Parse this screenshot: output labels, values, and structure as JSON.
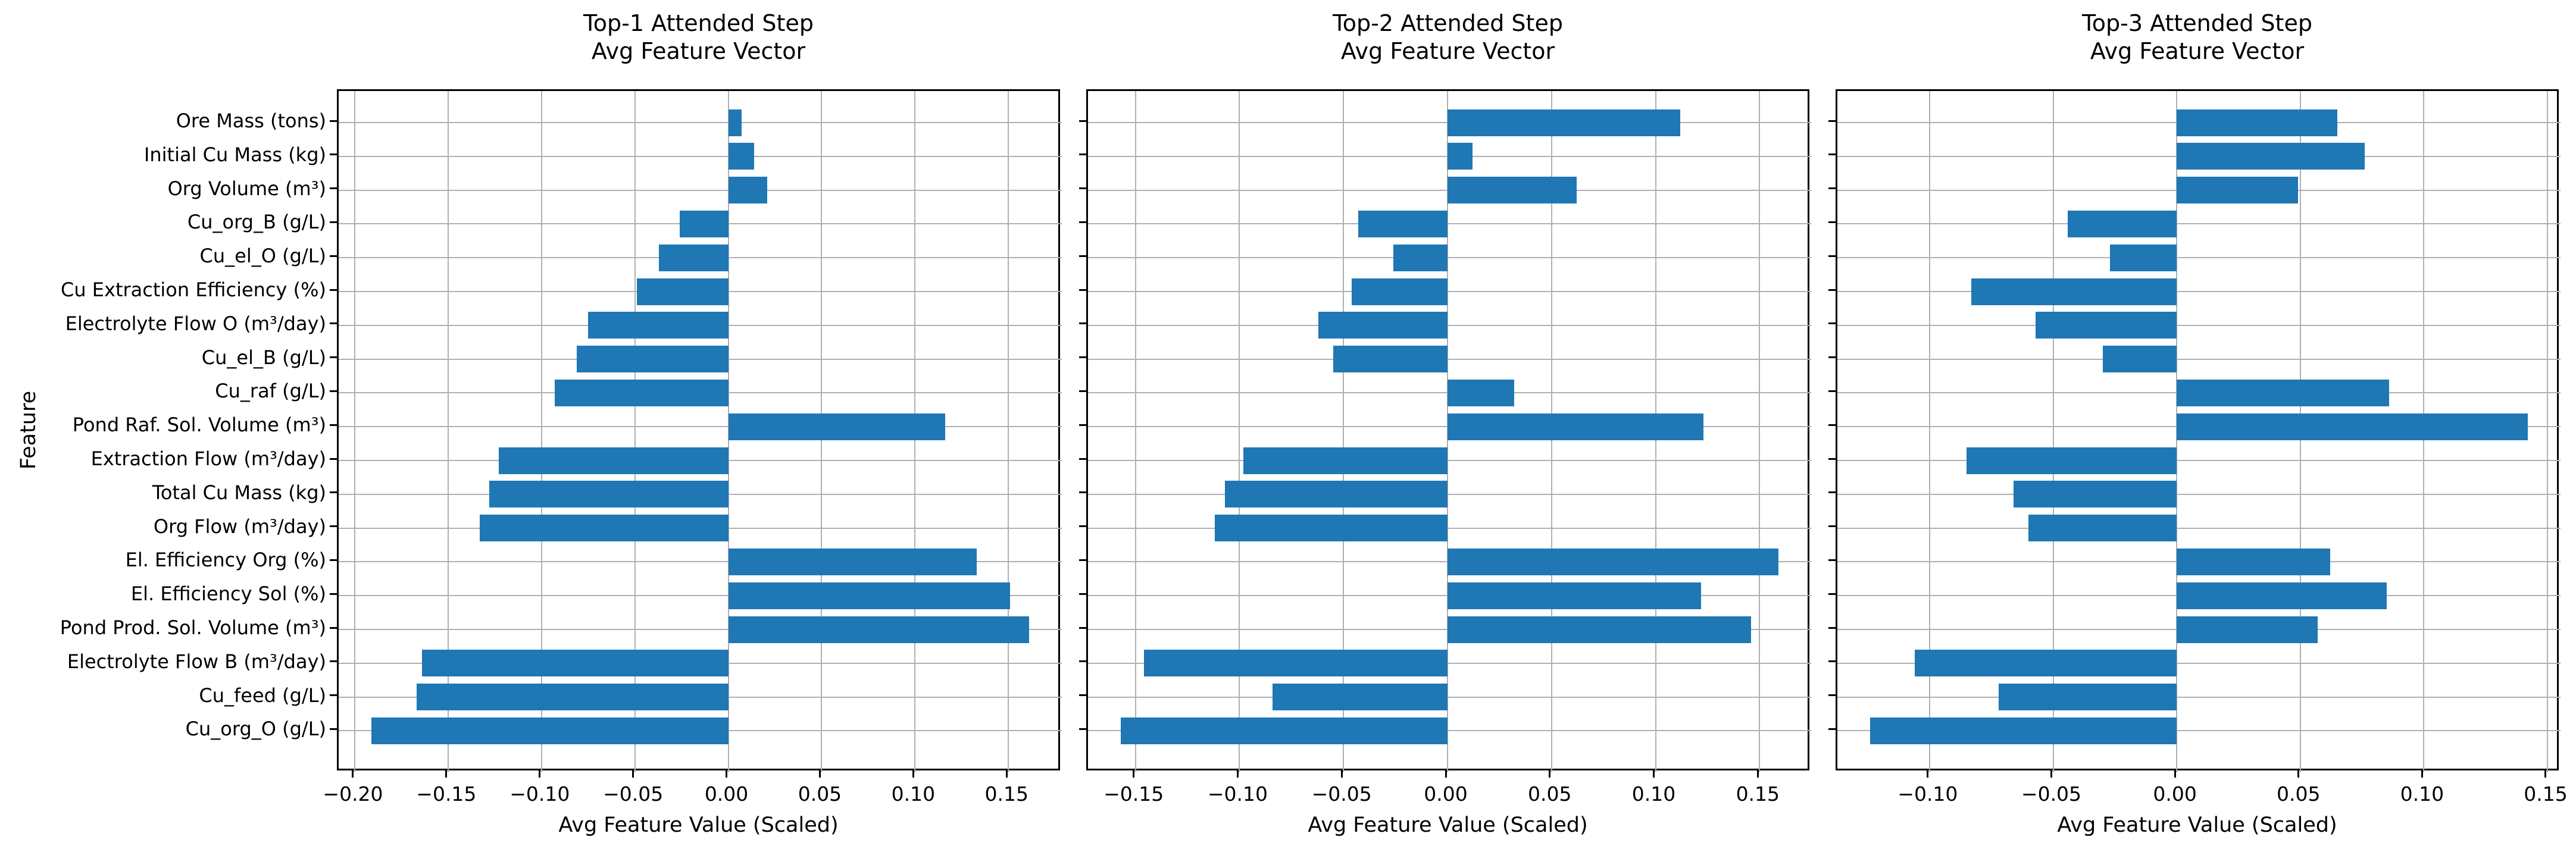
{
  "page": {
    "background": "#ffffff"
  },
  "colors": {
    "bar": "#1f77b4",
    "grid": "#b0b0b0",
    "spine": "#000000",
    "text": "#000000"
  },
  "ylabel": "Feature",
  "xlabel": "Avg Feature Value (Scaled)",
  "categories": [
    "Ore Mass (tons)",
    "Initial Cu Mass (kg)",
    "Org Volume (m³)",
    "Cu_org_B (g/L)",
    "Cu_el_O (g/L)",
    "Cu Extraction Efficiency (%)",
    "Electrolyte Flow O (m³/day)",
    "Cu_el_B (g/L)",
    "Cu_raf (g/L)",
    "Pond Raf. Sol. Volume (m³)",
    "Extraction Flow (m³/day)",
    "Total Cu Mass (kg)",
    "Org Flow (m³/day)",
    "El. Efficiency Org (%)",
    "El. Efficiency Sol (%)",
    "Pond Prod. Sol. Volume (m³)",
    "Electrolyte Flow B (m³/day)",
    "Cu_feed (g/L)",
    "Cu_org_O (g/L)"
  ],
  "chart_data": [
    {
      "type": "bar",
      "orientation": "horizontal",
      "title": "Top-1 Attended Step\nAvg Feature Vector",
      "xlabel": "Avg Feature Value (Scaled)",
      "ylabel": "Feature",
      "grid": true,
      "legend": false,
      "categories": [
        "Ore Mass (tons)",
        "Initial Cu Mass (kg)",
        "Org Volume (m³)",
        "Cu_org_B (g/L)",
        "Cu_el_O (g/L)",
        "Cu Extraction Efficiency (%)",
        "Electrolyte Flow O (m³/day)",
        "Cu_el_B (g/L)",
        "Cu_raf (g/L)",
        "Pond Raf. Sol. Volume (m³)",
        "Extraction Flow (m³/day)",
        "Total Cu Mass (kg)",
        "Org Flow (m³/day)",
        "El. Efficiency Org (%)",
        "El. Efficiency Sol (%)",
        "Pond Prod. Sol. Volume (m³)",
        "Electrolyte Flow B (m³/day)",
        "Cu_feed (g/L)",
        "Cu_org_O (g/L)"
      ],
      "values": [
        0.007,
        0.014,
        0.021,
        -0.026,
        -0.037,
        -0.049,
        -0.075,
        -0.081,
        -0.093,
        0.116,
        -0.123,
        -0.128,
        -0.133,
        0.133,
        0.151,
        0.161,
        -0.164,
        -0.167,
        -0.191
      ],
      "xlim": [
        -0.2086,
        0.1786
      ],
      "xticks": [
        -0.2,
        -0.15,
        -0.1,
        -0.05,
        0.0,
        0.05,
        0.1,
        0.15
      ],
      "xticklabels": [
        "−0.20",
        "−0.15",
        "−0.10",
        "−0.05",
        "0.00",
        "0.05",
        "0.10",
        "0.15"
      ]
    },
    {
      "type": "bar",
      "orientation": "horizontal",
      "title": "Top-2 Attended Step\nAvg Feature Vector",
      "xlabel": "Avg Feature Value (Scaled)",
      "ylabel": "Feature",
      "grid": true,
      "legend": false,
      "categories": [
        "Ore Mass (tons)",
        "Initial Cu Mass (kg)",
        "Org Volume (m³)",
        "Cu_org_B (g/L)",
        "Cu_el_O (g/L)",
        "Cu Extraction Efficiency (%)",
        "Electrolyte Flow O (m³/day)",
        "Cu_el_B (g/L)",
        "Cu_raf (g/L)",
        "Pond Raf. Sol. Volume (m³)",
        "Extraction Flow (m³/day)",
        "Total Cu Mass (kg)",
        "Org Flow (m³/day)",
        "El. Efficiency Org (%)",
        "El. Efficiency Sol (%)",
        "Pond Prod. Sol. Volume (m³)",
        "Electrolyte Flow B (m³/day)",
        "Cu_feed (g/L)",
        "Cu_org_O (g/L)"
      ],
      "values": [
        0.112,
        0.012,
        0.062,
        -0.043,
        -0.026,
        -0.046,
        -0.062,
        -0.055,
        0.032,
        0.123,
        -0.098,
        -0.107,
        -0.112,
        0.159,
        0.122,
        0.146,
        -0.146,
        -0.084,
        -0.157
      ],
      "xlim": [
        -0.1728,
        0.1748
      ],
      "xticks": [
        -0.15,
        -0.1,
        -0.05,
        0.0,
        0.05,
        0.1,
        0.15
      ],
      "xticklabels": [
        "−0.15",
        "−0.10",
        "−0.05",
        "0.00",
        "0.05",
        "0.10",
        "0.15"
      ]
    },
    {
      "type": "bar",
      "orientation": "horizontal",
      "title": "Top-3 Attended Step\nAvg Feature Vector",
      "xlabel": "Avg Feature Value (Scaled)",
      "ylabel": "Feature",
      "grid": true,
      "legend": false,
      "categories": [
        "Ore Mass (tons)",
        "Initial Cu Mass (kg)",
        "Org Volume (m³)",
        "Cu_org_B (g/L)",
        "Cu_el_O (g/L)",
        "Cu Extraction Efficiency (%)",
        "Electrolyte Flow O (m³/day)",
        "Cu_el_B (g/L)",
        "Cu_raf (g/L)",
        "Pond Raf. Sol. Volume (m³)",
        "Extraction Flow (m³/day)",
        "Total Cu Mass (kg)",
        "Org Flow (m³/day)",
        "El. Efficiency Org (%)",
        "El. Efficiency Sol (%)",
        "Pond Prod. Sol. Volume (m³)",
        "Electrolyte Flow B (m³/day)",
        "Cu_feed (g/L)",
        "Cu_org_O (g/L)"
      ],
      "values": [
        0.065,
        0.076,
        0.049,
        -0.044,
        -0.027,
        -0.083,
        -0.057,
        -0.03,
        0.086,
        0.142,
        -0.085,
        -0.066,
        -0.06,
        0.062,
        0.085,
        0.057,
        -0.106,
        -0.072,
        -0.124
      ],
      "xlim": [
        -0.1373,
        0.1553
      ],
      "xticks": [
        -0.1,
        -0.05,
        0.0,
        0.05,
        0.1,
        0.15
      ],
      "xticklabels": [
        "−0.10",
        "−0.05",
        "0.00",
        "0.05",
        "0.10",
        "0.15"
      ]
    }
  ]
}
